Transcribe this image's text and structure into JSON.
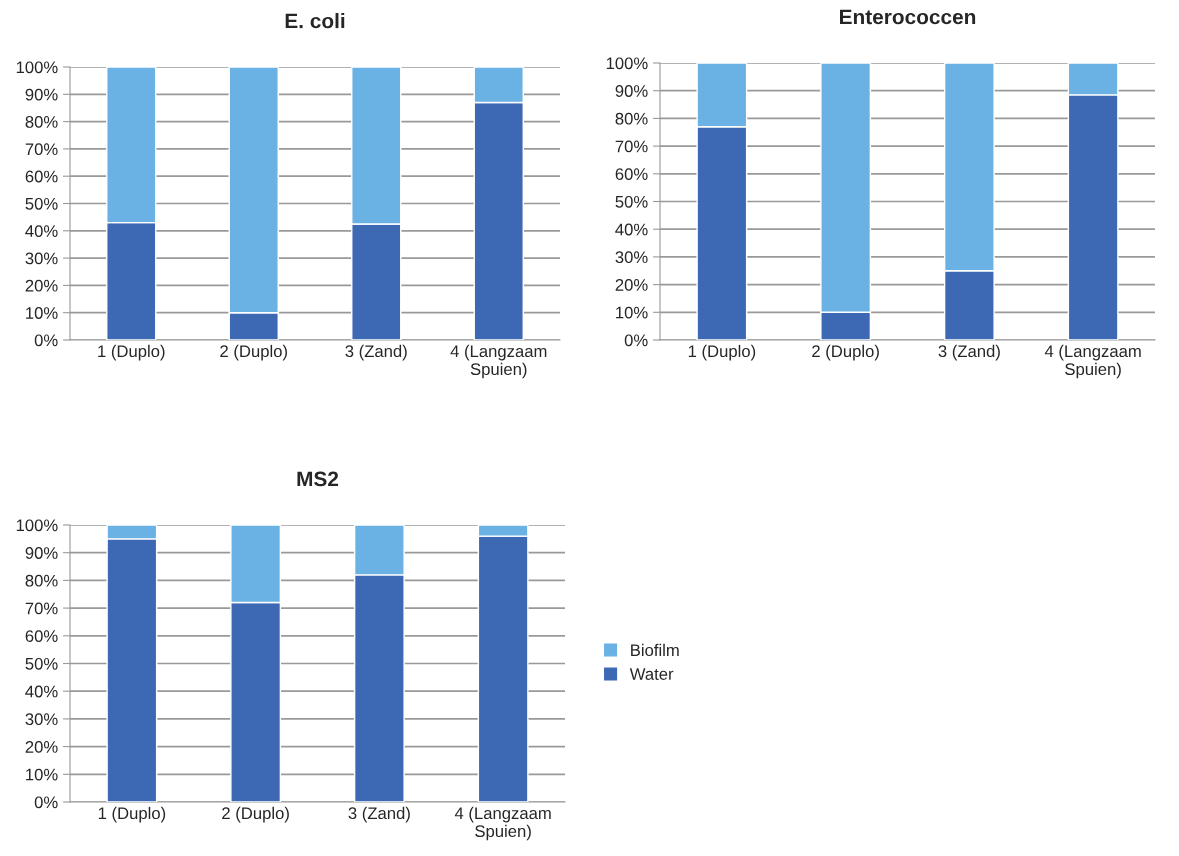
{
  "chart_data": [
    {
      "type": "bar",
      "title": "E. coli",
      "stacked": true,
      "categories": [
        "1 (Duplo)",
        "2 (Duplo)",
        "3 (Zand)",
        "4 (Langzaam Spuien)"
      ],
      "series": [
        {
          "color": "#3d68b4",
          "values": [
            43,
            10,
            42.5,
            87
          ]
        },
        {
          "color": "#6ab2e4",
          "values": [
            57,
            90,
            57.5,
            13
          ]
        }
      ],
      "ylim": [
        0,
        100
      ],
      "yticks": [
        {
          "value": 0,
          "label": "0%"
        },
        {
          "value": 10,
          "label": "10%"
        },
        {
          "value": 20,
          "label": "20%"
        },
        {
          "value": 30,
          "label": "30%"
        },
        {
          "value": 40,
          "label": "40%"
        },
        {
          "value": 50,
          "label": "50%"
        },
        {
          "value": 60,
          "label": "60%"
        },
        {
          "value": 70,
          "label": "70%"
        },
        {
          "value": 80,
          "label": "80%"
        },
        {
          "value": 90,
          "label": "90%"
        },
        {
          "value": 100,
          "label": "100%"
        }
      ],
      "grid": "y"
    },
    {
      "type": "bar",
      "title": "Enterococcen",
      "stacked": true,
      "categories": [
        "1 (Duplo)",
        "2 (Duplo)",
        "3 (Zand)",
        "4 (Langzaam Spuien)"
      ],
      "series": [
        {
          "color": "#3d68b4",
          "values": [
            77,
            10,
            25,
            88.5
          ]
        },
        {
          "color": "#6ab2e4",
          "values": [
            23,
            90,
            75,
            11.5
          ]
        }
      ],
      "ylim": [
        0,
        100
      ],
      "yticks": [
        {
          "value": 0,
          "label": "0%"
        },
        {
          "value": 10,
          "label": "10%"
        },
        {
          "value": 20,
          "label": "20%"
        },
        {
          "value": 30,
          "label": "30%"
        },
        {
          "value": 40,
          "label": "40%"
        },
        {
          "value": 50,
          "label": "50%"
        },
        {
          "value": 60,
          "label": "60%"
        },
        {
          "value": 70,
          "label": "70%"
        },
        {
          "value": 80,
          "label": "80%"
        },
        {
          "value": 90,
          "label": "90%"
        },
        {
          "value": 100,
          "label": "100%"
        }
      ],
      "grid": "y"
    },
    {
      "type": "bar",
      "title": "MS2",
      "stacked": true,
      "categories": [
        "1 (Duplo)",
        "2 (Duplo)",
        "3 (Zand)",
        "4 (Langzaam Spuien)"
      ],
      "series": [
        {
          "name": "Water",
          "color": "#3d68b4",
          "values": [
            95,
            72,
            82,
            96
          ]
        },
        {
          "name": "Biofilm",
          "color": "#6ab2e4",
          "values": [
            5,
            28,
            18,
            4
          ]
        }
      ],
      "ylim": [
        0,
        100
      ],
      "yticks": [
        {
          "value": 0,
          "label": "0%"
        },
        {
          "value": 10,
          "label": "10%"
        },
        {
          "value": 20,
          "label": "20%"
        },
        {
          "value": 30,
          "label": "30%"
        },
        {
          "value": 40,
          "label": "40%"
        },
        {
          "value": 50,
          "label": "50%"
        },
        {
          "value": 60,
          "label": "60%"
        },
        {
          "value": 70,
          "label": "70%"
        },
        {
          "value": 80,
          "label": "80%"
        },
        {
          "value": 90,
          "label": "90%"
        },
        {
          "value": 100,
          "label": "100%"
        }
      ],
      "grid": "y",
      "legend": "right"
    }
  ]
}
